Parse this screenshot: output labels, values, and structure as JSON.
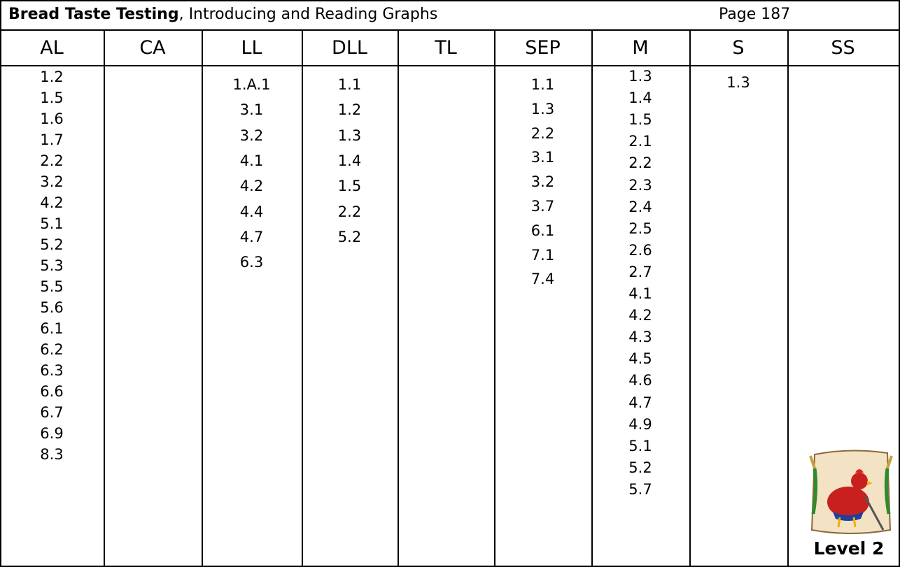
{
  "header": {
    "title_bold": "Bread Taste Testing",
    "title_rest": ", Introducing and Reading Graphs",
    "page": "Page 187"
  },
  "table": {
    "columns": [
      {
        "heading": "AL",
        "items": [
          "1.2",
          "1.5",
          "1.6",
          "1.7",
          "2.2",
          "3.2",
          "4.2",
          "5.1",
          "5.2",
          "5.3",
          "5.5",
          "5.6",
          "6.1",
          "6.2",
          "6.3",
          "6.6",
          "6.7",
          "6.9",
          "8.3"
        ]
      },
      {
        "heading": "CA",
        "items": []
      },
      {
        "heading": "LL",
        "items": [
          "1.A.1",
          "3.1",
          "3.2",
          "4.1",
          "4.2",
          "4.4",
          "4.7",
          "6.3"
        ]
      },
      {
        "heading": "DLL",
        "items": [
          "1.1",
          "1.2",
          "1.3",
          "1.4",
          "1.5",
          "2.2",
          "5.2"
        ]
      },
      {
        "heading": "TL",
        "items": []
      },
      {
        "heading": "SEP",
        "items": [
          "1.1",
          "1.3",
          "2.2",
          "3.1",
          "3.2",
          "3.7",
          "6.1",
          "7.1",
          "7.4"
        ]
      },
      {
        "heading": "M",
        "items": [
          "1.3",
          "1.4",
          "1.5",
          "2.1",
          "2.2",
          "2.3",
          "2.4",
          "2.5",
          "2.6",
          "2.7",
          "4.1",
          "4.2",
          "4.3",
          "4.5",
          "4.6",
          "4.7",
          "4.9",
          "5.1",
          "5.2",
          "5.7"
        ]
      },
      {
        "heading": "S",
        "items": [
          "1.3"
        ]
      },
      {
        "heading": "SS",
        "items": []
      }
    ]
  },
  "badge": {
    "label": "Level 2"
  }
}
